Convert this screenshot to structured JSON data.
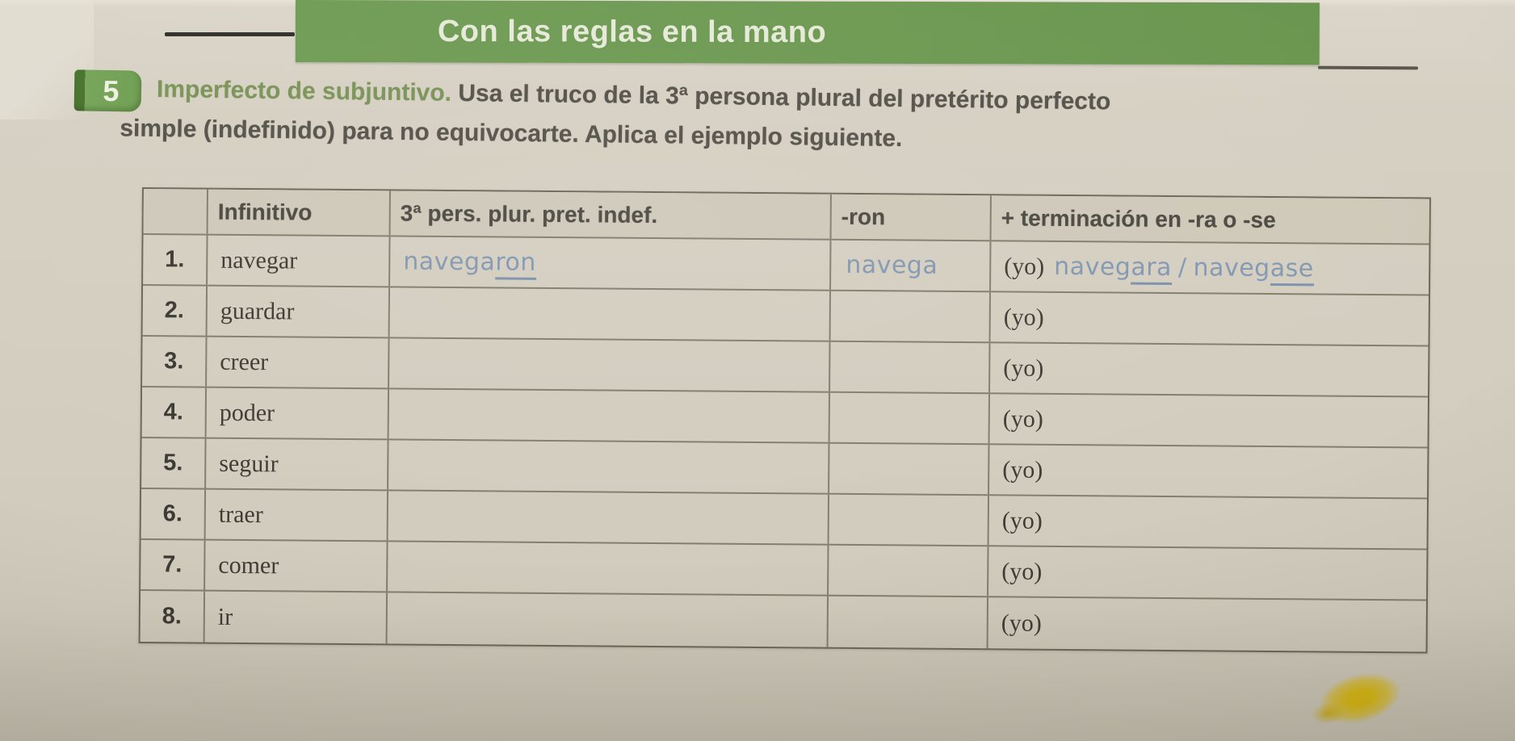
{
  "banner": {
    "title": "Con las reglas en la mano"
  },
  "exercise": {
    "number": "5",
    "lead": "Imperfecto de subjuntivo.",
    "line1": "Usa el truco de la 3ª persona plural del pretérito perfecto",
    "line2": "simple (indefinido) para no equivocarte. Aplica el ejemplo siguiente."
  },
  "table": {
    "headers": {
      "infinitive": "Infinitivo",
      "preterite": "3ª pers. plur. pret. indef.",
      "ron": "-ron",
      "ending": "+ terminación en -ra o -se"
    },
    "rows": [
      {
        "num": "1.",
        "infinitive": "navegar",
        "pronoun": "(yo)"
      },
      {
        "num": "2.",
        "infinitive": "guardar",
        "pronoun": "(yo)"
      },
      {
        "num": "3.",
        "infinitive": "creer",
        "pronoun": "(yo)"
      },
      {
        "num": "4.",
        "infinitive": "poder",
        "pronoun": "(yo)"
      },
      {
        "num": "5.",
        "infinitive": "seguir",
        "pronoun": "(yo)"
      },
      {
        "num": "6.",
        "infinitive": "traer",
        "pronoun": "(yo)"
      },
      {
        "num": "7.",
        "infinitive": "comer",
        "pronoun": "(yo)"
      },
      {
        "num": "8.",
        "infinitive": "ir",
        "pronoun": "(yo)"
      }
    ]
  },
  "example": {
    "preterite_base": "navega",
    "preterite_ending": "ron",
    "stem": "navega",
    "ra_base": "naveg",
    "ra_ending": "ara",
    "separator": "/",
    "se_base": "naveg",
    "se_ending": "ase"
  },
  "colors": {
    "banner_green": "#6e9a53",
    "badge_green": "#74a457",
    "lead_green": "#7b9459",
    "handwriting_blue": "#8398b2",
    "highlighter_yellow": "#dbb90a",
    "paper": "#d5cfc2"
  }
}
